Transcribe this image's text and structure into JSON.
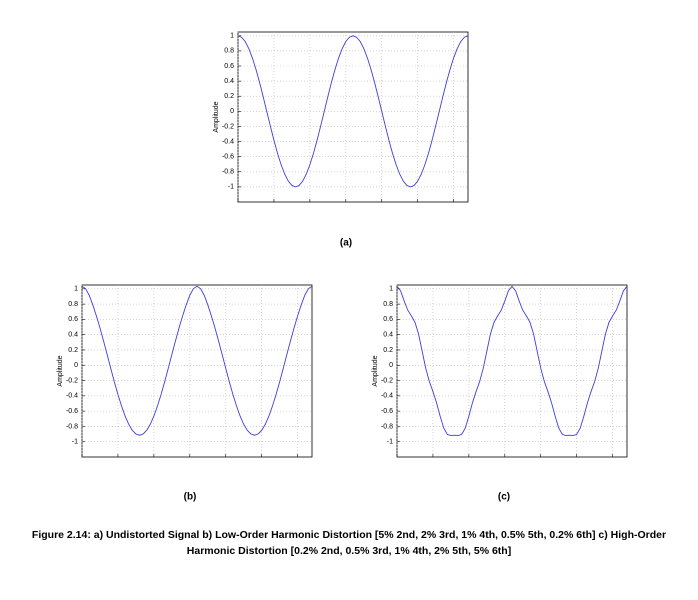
{
  "chart_data": [
    {
      "type": "line",
      "label": "(a)",
      "ylabel": "Amplitude",
      "color": "#3f3fd8",
      "grid": true,
      "xlim": [
        0,
        64
      ],
      "xticks": [
        0,
        10,
        20,
        30,
        40,
        50,
        60
      ],
      "ylim": [
        -1.2,
        1.05
      ],
      "yticks": [
        -1,
        -0.8,
        -0.6,
        -0.4,
        -0.2,
        0,
        0.2,
        0.4,
        0.6,
        0.8,
        1
      ],
      "x": [
        0,
        1,
        2,
        3,
        4,
        5,
        6,
        7,
        8,
        9,
        10,
        11,
        12,
        13,
        14,
        15,
        16,
        17,
        18,
        19,
        20,
        21,
        22,
        23,
        24,
        25,
        26,
        27,
        28,
        29,
        30,
        31,
        32,
        33,
        34,
        35,
        36,
        37,
        38,
        39,
        40,
        41,
        42,
        43,
        44,
        45,
        46,
        47,
        48,
        49,
        50,
        51,
        52,
        53,
        54,
        55,
        56,
        57,
        58,
        59,
        60,
        61,
        62,
        63,
        64
      ],
      "values": [
        1,
        0.981,
        0.924,
        0.831,
        0.707,
        0.556,
        0.383,
        0.195,
        0,
        -0.195,
        -0.383,
        -0.556,
        -0.707,
        -0.831,
        -0.924,
        -0.981,
        -1,
        -0.981,
        -0.924,
        -0.831,
        -0.707,
        -0.556,
        -0.383,
        -0.195,
        0,
        0.195,
        0.383,
        0.556,
        0.707,
        0.831,
        0.924,
        0.981,
        1,
        0.981,
        0.924,
        0.831,
        0.707,
        0.556,
        0.383,
        0.195,
        0,
        -0.195,
        -0.383,
        -0.556,
        -0.707,
        -0.831,
        -0.924,
        -0.981,
        -1,
        -0.981,
        -0.924,
        -0.831,
        -0.707,
        -0.556,
        -0.383,
        -0.195,
        0,
        0.195,
        0.383,
        0.556,
        0.707,
        0.831,
        0.924,
        0.981,
        1
      ]
    },
    {
      "type": "line",
      "label": "(b)",
      "ylabel": "Amplitude",
      "color": "#3f3fd8",
      "grid": true,
      "xlim": [
        0,
        64
      ],
      "xticks": [
        0,
        10,
        20,
        30,
        40,
        50,
        60
      ],
      "ylim": [
        -1.2,
        1.05
      ],
      "yticks": [
        -1,
        -0.8,
        -0.6,
        -0.4,
        -0.2,
        0,
        0.2,
        0.4,
        0.6,
        0.8,
        1
      ],
      "x": [
        0,
        1,
        2,
        3,
        4,
        5,
        6,
        7,
        8,
        9,
        10,
        11,
        12,
        13,
        14,
        15,
        16,
        17,
        18,
        19,
        20,
        21,
        22,
        23,
        24,
        25,
        26,
        27,
        28,
        29,
        30,
        31,
        32,
        33,
        34,
        35,
        36,
        37,
        38,
        39,
        40,
        41,
        42,
        43,
        44,
        45,
        46,
        47,
        48,
        49,
        50,
        51,
        52,
        53,
        54,
        55,
        56,
        57,
        58,
        59,
        60,
        61,
        62,
        63,
        64
      ],
      "values": [
        1.033,
        1.002,
        0.916,
        0.791,
        0.646,
        0.487,
        0.318,
        0.141,
        -0.04,
        -0.217,
        -0.383,
        -0.533,
        -0.665,
        -0.772,
        -0.851,
        -0.899,
        -0.915,
        -0.899,
        -0.851,
        -0.772,
        -0.665,
        -0.533,
        -0.383,
        -0.217,
        -0.04,
        0.141,
        0.318,
        0.487,
        0.646,
        0.791,
        0.916,
        1.002,
        1.033,
        1.002,
        0.916,
        0.791,
        0.646,
        0.487,
        0.318,
        0.141,
        -0.04,
        -0.217,
        -0.383,
        -0.533,
        -0.665,
        -0.772,
        -0.851,
        -0.899,
        -0.915,
        -0.899,
        -0.851,
        -0.772,
        -0.665,
        -0.533,
        -0.383,
        -0.217,
        -0.04,
        0.141,
        0.318,
        0.487,
        0.646,
        0.791,
        0.916,
        1.002,
        1.033
      ]
    },
    {
      "type": "line",
      "label": "(c)",
      "ylabel": "Amplitude",
      "color": "#3f3fd8",
      "grid": true,
      "xlim": [
        0,
        64
      ],
      "xticks": [
        0,
        10,
        20,
        30,
        40,
        50,
        60
      ],
      "ylim": [
        -1.2,
        1.05
      ],
      "yticks": [
        -1,
        -0.8,
        -0.6,
        -0.4,
        -0.2,
        0,
        0.2,
        0.4,
        0.6,
        0.8,
        1
      ],
      "x": [
        0,
        1,
        2,
        3,
        4,
        5,
        6,
        7,
        8,
        9,
        10,
        11,
        12,
        13,
        14,
        15,
        16,
        17,
        18,
        19,
        20,
        21,
        22,
        23,
        24,
        25,
        26,
        27,
        28,
        29,
        30,
        31,
        32,
        33,
        34,
        35,
        36,
        37,
        38,
        39,
        40,
        41,
        42,
        43,
        44,
        45,
        46,
        47,
        48,
        49,
        50,
        51,
        52,
        53,
        54,
        55,
        56,
        57,
        58,
        59,
        60,
        61,
        62,
        63,
        64
      ],
      "values": [
        1.033,
        0.973,
        0.84,
        0.72,
        0.646,
        0.563,
        0.409,
        0.185,
        -0.04,
        -0.212,
        -0.344,
        -0.49,
        -0.665,
        -0.82,
        -0.904,
        -0.92,
        -0.915,
        -0.92,
        -0.904,
        -0.82,
        -0.665,
        -0.49,
        -0.344,
        -0.212,
        -0.04,
        0.185,
        0.409,
        0.563,
        0.646,
        0.72,
        0.84,
        0.973,
        1.033,
        0.973,
        0.84,
        0.72,
        0.646,
        0.563,
        0.409,
        0.185,
        -0.04,
        -0.212,
        -0.344,
        -0.49,
        -0.665,
        -0.82,
        -0.904,
        -0.92,
        -0.915,
        -0.92,
        -0.904,
        -0.82,
        -0.665,
        -0.49,
        -0.344,
        -0.212,
        -0.04,
        0.185,
        0.409,
        0.563,
        0.646,
        0.72,
        0.84,
        0.973,
        1.033
      ]
    }
  ],
  "caption": "Figure 2.14: a) Undistorted Signal b) Low-Order Harmonic Distortion [5% 2nd, 2% 3rd, 1% 4th, 0.5% 5th, 0.2% 6th] c) High-Order Harmonic Distortion [0.2% 2nd, 0.5% 3rd, 1% 4th, 2% 5th, 5% 6th]"
}
